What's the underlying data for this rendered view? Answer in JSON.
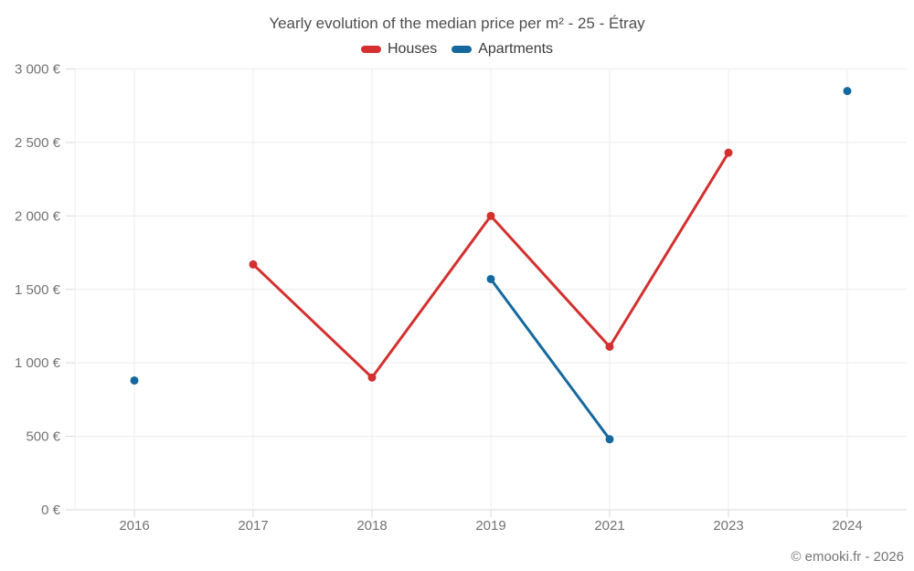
{
  "page": {
    "title": "Yearly evolution of the median price per m² - 25 - Étray",
    "footer": "© emooki.fr - 2026"
  },
  "legend": {
    "items": [
      {
        "label": "Houses",
        "color": "#d3302f"
      },
      {
        "label": "Apartments",
        "color": "#15689e"
      }
    ]
  },
  "chart_data": {
    "type": "line",
    "title": "Yearly evolution of the median price per m² - 25 - Étray",
    "categories": [
      "2016",
      "2017",
      "2018",
      "2019",
      "2021",
      "2023",
      "2024"
    ],
    "series": [
      {
        "name": "Houses",
        "color": "#d3302f",
        "values": [
          null,
          1670,
          900,
          2000,
          1110,
          2430,
          null
        ]
      },
      {
        "name": "Apartments",
        "color": "#15689e",
        "values": [
          880,
          null,
          null,
          1570,
          480,
          null,
          2850
        ]
      }
    ],
    "ylim": [
      0,
      3000
    ],
    "ytick_step": 500,
    "ytick_labels": [
      "0 €",
      "500 €",
      "1 000 €",
      "1 500 €",
      "2 000 €",
      "2 500 €",
      "3 000 €"
    ],
    "xlabel": "",
    "ylabel": "",
    "grid": true,
    "legend_position": "top",
    "note": "lines only connect consecutive categories with data"
  },
  "colors": {
    "background": "#ffffff",
    "grid": "#ececec",
    "axis": "#dadada",
    "tick_label": "#737373",
    "title": "#4d4e50",
    "legend_text": "#3b3b3b",
    "footer": "#757575"
  }
}
